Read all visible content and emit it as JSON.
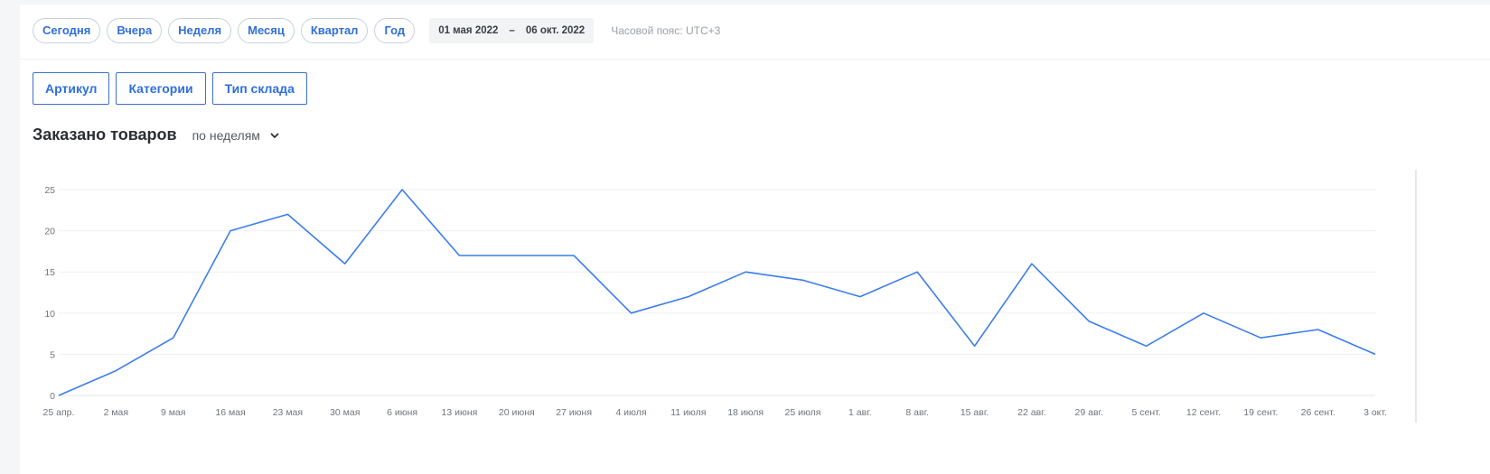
{
  "filters": {
    "periods": [
      "Сегодня",
      "Вчера",
      "Неделя",
      "Месяц",
      "Квартал",
      "Год"
    ],
    "date_from": "01 мая 2022",
    "date_sep": "–",
    "date_to": "06 окт. 2022",
    "timezone": "Часовой пояс: UTC+3"
  },
  "segments": [
    "Артикул",
    "Категории",
    "Тип склада"
  ],
  "section": {
    "title": "Заказано товаров",
    "period_select": "по неделям"
  },
  "colors": {
    "line": "#3b7ded",
    "accent": "#2f6fdd",
    "grid": "#eff1f4"
  },
  "chart_data": {
    "type": "line",
    "x": [
      "25 апр.",
      "2 мая",
      "9 мая",
      "16 мая",
      "23 мая",
      "30 мая",
      "6 июня",
      "13 июня",
      "20 июня",
      "27 июня",
      "4 июля",
      "11 июля",
      "18 июля",
      "25 июля",
      "1 авг.",
      "8 авг.",
      "15 авг.",
      "22 авг.",
      "29 авг.",
      "5 сент.",
      "12 сент.",
      "19 сент.",
      "26 сент.",
      "3 окт."
    ],
    "series": [
      {
        "values": [
          0,
          3,
          7,
          20,
          22,
          16,
          25,
          17,
          17,
          17,
          10,
          12,
          15,
          14,
          12,
          15,
          6,
          16,
          9,
          6,
          10,
          7,
          8,
          5
        ]
      }
    ],
    "yticks": [
      0,
      5,
      10,
      15,
      20,
      25
    ],
    "ylim": [
      0,
      25
    ],
    "grid": true,
    "legend": "none"
  }
}
